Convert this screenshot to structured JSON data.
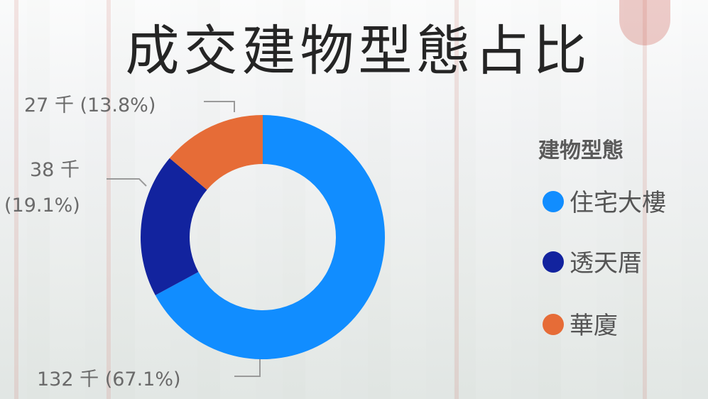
{
  "chart_data": {
    "type": "pie",
    "subtype": "donut",
    "title": "成交建物型態占比",
    "legend": {
      "title": "建物型態",
      "position": "right"
    },
    "slices": [
      {
        "name": "住宅大樓",
        "value": 132,
        "label": "132 千 (67.1%)",
        "color": "#118dff"
      },
      {
        "name": "透天厝",
        "value": 38,
        "label_line1": "38 千",
        "label_line2": "(19.1%)",
        "color": "#12239e"
      },
      {
        "name": "華廈",
        "value": 27,
        "label": "27 千 (13.8%)",
        "color": "#e66c37"
      }
    ],
    "percentages": [
      67.1,
      19.1,
      13.8
    ]
  }
}
